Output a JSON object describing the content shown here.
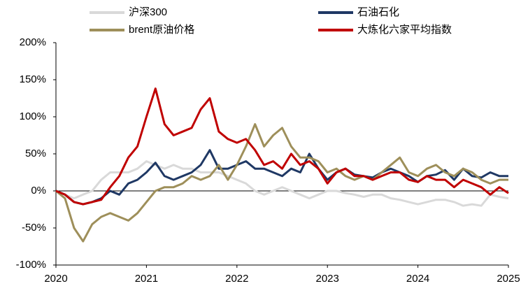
{
  "chart_data": {
    "type": "line",
    "x": [
      2020.0,
      2020.1,
      2020.2,
      2020.3,
      2020.4,
      2020.5,
      2020.6,
      2020.7,
      2020.8,
      2020.9,
      2021.0,
      2021.1,
      2021.2,
      2021.3,
      2021.4,
      2021.5,
      2021.6,
      2021.7,
      2021.8,
      2021.9,
      2022.0,
      2022.1,
      2022.2,
      2022.3,
      2022.4,
      2022.5,
      2022.6,
      2022.7,
      2022.8,
      2022.9,
      2023.0,
      2023.1,
      2023.2,
      2023.3,
      2023.4,
      2023.5,
      2023.6,
      2023.7,
      2023.8,
      2023.9,
      2024.0,
      2024.1,
      2024.2,
      2024.3,
      2024.4,
      2024.5,
      2024.6,
      2024.7,
      2024.8,
      2024.9,
      2025.0
    ],
    "series": [
      {
        "name": "沪深300",
        "color": "#d9d9d9",
        "values": [
          0,
          -5,
          -10,
          -5,
          0,
          15,
          25,
          25,
          25,
          30,
          40,
          35,
          30,
          35,
          30,
          30,
          25,
          25,
          25,
          20,
          15,
          10,
          0,
          -5,
          0,
          5,
          0,
          -5,
          -10,
          -5,
          0,
          0,
          -3,
          -5,
          -8,
          -5,
          -5,
          -10,
          -12,
          -15,
          -18,
          -15,
          -12,
          -12,
          -15,
          -20,
          -18,
          -20,
          -5,
          -8,
          -10
        ]
      },
      {
        "name": "石油石化",
        "color": "#1f3864",
        "values": [
          0,
          -5,
          -15,
          -18,
          -15,
          -10,
          0,
          -5,
          10,
          15,
          25,
          38,
          20,
          15,
          20,
          25,
          35,
          55,
          30,
          30,
          35,
          40,
          30,
          30,
          25,
          20,
          30,
          25,
          50,
          30,
          15,
          25,
          30,
          22,
          20,
          18,
          25,
          30,
          25,
          20,
          12,
          20,
          22,
          28,
          15,
          30,
          20,
          18,
          25,
          20,
          20
        ]
      },
      {
        "name": "brent原油价格",
        "color": "#9e8f5a",
        "values": [
          0,
          -10,
          -50,
          -68,
          -45,
          -35,
          -30,
          -35,
          -40,
          -30,
          -15,
          0,
          5,
          5,
          10,
          20,
          15,
          20,
          35,
          15,
          35,
          60,
          90,
          60,
          75,
          85,
          60,
          45,
          45,
          40,
          25,
          30,
          20,
          15,
          20,
          15,
          25,
          35,
          45,
          25,
          20,
          30,
          35,
          25,
          20,
          30,
          25,
          15,
          10,
          15,
          15
        ]
      },
      {
        "name": "大炼化六家平均指数",
        "color": "#c00000",
        "values": [
          0,
          -5,
          -15,
          -18,
          -15,
          -12,
          5,
          20,
          45,
          60,
          100,
          138,
          90,
          75,
          80,
          85,
          110,
          125,
          80,
          70,
          65,
          70,
          55,
          35,
          40,
          30,
          50,
          35,
          40,
          30,
          10,
          25,
          30,
          20,
          20,
          15,
          20,
          25,
          25,
          15,
          12,
          20,
          15,
          15,
          5,
          15,
          10,
          5,
          -5,
          5,
          -3
        ]
      }
    ],
    "xlim": [
      2020,
      2025
    ],
    "xticks": [
      2020,
      2021,
      2022,
      2023,
      2024,
      2025
    ],
    "ylim": [
      -100,
      200
    ],
    "yticks": [
      {
        "value": -100,
        "label": "-100%"
      },
      {
        "value": -50,
        "label": "-50%"
      },
      {
        "value": 0,
        "label": "0%"
      },
      {
        "value": 50,
        "label": "50%"
      },
      {
        "value": 100,
        "label": "100%"
      },
      {
        "value": 150,
        "label": "150%"
      },
      {
        "value": 200,
        "label": "200%"
      }
    ]
  }
}
